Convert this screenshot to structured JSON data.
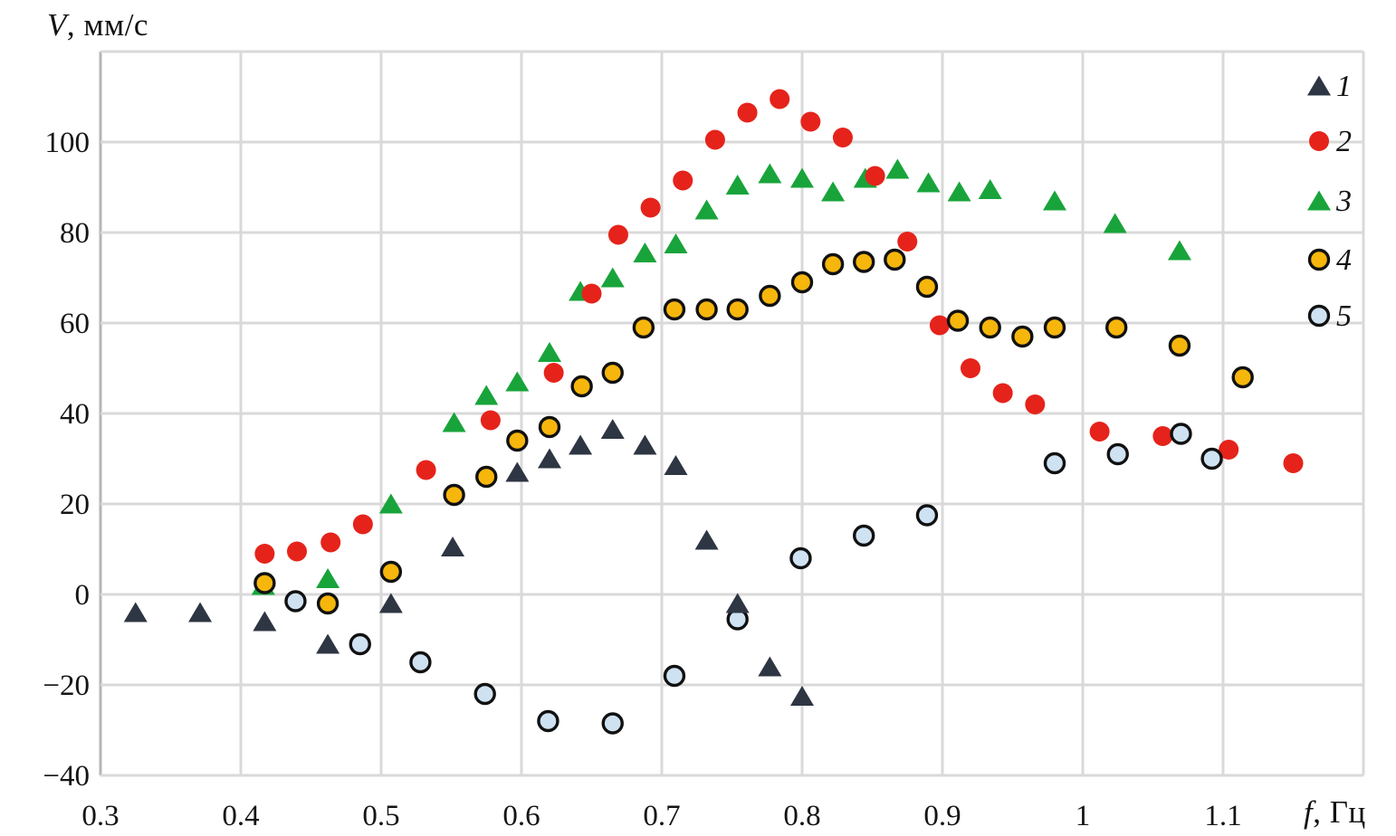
{
  "page": {
    "background": "#ffffff"
  },
  "y_axis": {
    "title_var": "V",
    "title_rest": ", мм/с",
    "tick_labels": [
      {
        "text": "100",
        "value": 100
      },
      {
        "text": "80",
        "value": 80
      },
      {
        "text": "60",
        "value": 60
      },
      {
        "text": "40",
        "value": 40
      },
      {
        "text": "20",
        "value": 20
      },
      {
        "text": "0",
        "value": 0
      },
      {
        "text": "−20",
        "value": -20
      },
      {
        "text": "−40",
        "value": -40
      }
    ],
    "grid_values": [
      -40,
      -20,
      0,
      20,
      40,
      60,
      80,
      100,
      120
    ]
  },
  "x_axis": {
    "title_var": "f",
    "title_rest": ", Гц",
    "tick_labels": [
      {
        "text": "0.3",
        "value": 0.3
      },
      {
        "text": "0.4",
        "value": 0.4
      },
      {
        "text": "0.5",
        "value": 0.5
      },
      {
        "text": "0.6",
        "value": 0.6
      },
      {
        "text": "0.7",
        "value": 0.7
      },
      {
        "text": "0.8",
        "value": 0.8
      },
      {
        "text": "0.9",
        "value": 0.9
      },
      {
        "text": "1",
        "value": 1.0
      },
      {
        "text": "1.1",
        "value": 1.1
      }
    ],
    "grid_values": [
      0.3,
      0.4,
      0.5,
      0.6,
      0.7,
      0.8,
      0.9,
      1.0,
      1.1,
      1.2
    ]
  },
  "legend": {
    "entries": [
      {
        "label": "1",
        "series_id": 1
      },
      {
        "label": "2",
        "series_id": 2
      },
      {
        "label": "3",
        "series_id": 3
      },
      {
        "label": "4",
        "series_id": 4
      },
      {
        "label": "5",
        "series_id": 5
      }
    ]
  },
  "colors": {
    "grid": "#d9d9d9",
    "axis_border": "#b5b5b5",
    "text": "#141414",
    "series1": "#2e3543",
    "series2": "#e5231b",
    "series3": "#18a43b",
    "series4": "#f6b60b",
    "series5": "#cfe2f2",
    "marker_outline": "#111111"
  },
  "chart_data": {
    "type": "scatter",
    "title": "",
    "xlabel": "f, Гц",
    "ylabel": "V, мм/с",
    "xlim": [
      0.3,
      1.2
    ],
    "ylim": [
      -40,
      120
    ],
    "grid": true,
    "legend_position": "top-right-inside",
    "draw_order": [
      3,
      2,
      4,
      5,
      1
    ],
    "series": [
      {
        "id": 1,
        "name": "1",
        "marker": "triangle",
        "fill": "#2e3543",
        "stroke": "none",
        "points": [
          [
            0.325,
            -4
          ],
          [
            0.371,
            -4
          ],
          [
            0.417,
            -6
          ],
          [
            0.462,
            -11
          ],
          [
            0.507,
            -2
          ],
          [
            0.551,
            10.5
          ],
          [
            0.597,
            27
          ],
          [
            0.62,
            30
          ],
          [
            0.642,
            33
          ],
          [
            0.665,
            36.5
          ],
          [
            0.688,
            33
          ],
          [
            0.71,
            28.5
          ],
          [
            0.732,
            12
          ],
          [
            0.754,
            -2
          ],
          [
            0.777,
            -16
          ],
          [
            0.8,
            -22.5
          ]
        ]
      },
      {
        "id": 2,
        "name": "2",
        "marker": "circle",
        "fill": "#e5231b",
        "stroke": "none",
        "points": [
          [
            0.417,
            9
          ],
          [
            0.44,
            9.5
          ],
          [
            0.464,
            11.5
          ],
          [
            0.487,
            15.5
          ],
          [
            0.532,
            27.5
          ],
          [
            0.578,
            38.5
          ],
          [
            0.623,
            49
          ],
          [
            0.65,
            66.5
          ],
          [
            0.669,
            79.5
          ],
          [
            0.692,
            85.5
          ],
          [
            0.715,
            91.5
          ],
          [
            0.738,
            100.5
          ],
          [
            0.761,
            106.5
          ],
          [
            0.784,
            109.5
          ],
          [
            0.806,
            104.5
          ],
          [
            0.829,
            101
          ],
          [
            0.852,
            92.5
          ],
          [
            0.875,
            78
          ],
          [
            0.898,
            59.5
          ],
          [
            0.92,
            50
          ],
          [
            0.943,
            44.5
          ],
          [
            0.966,
            42
          ],
          [
            1.012,
            36
          ],
          [
            1.057,
            35
          ],
          [
            1.104,
            32
          ],
          [
            1.15,
            29
          ]
        ]
      },
      {
        "id": 3,
        "name": "3",
        "marker": "triangle",
        "fill": "#18a43b",
        "stroke": "none",
        "points": [
          [
            0.416,
            2
          ],
          [
            0.462,
            3.5
          ],
          [
            0.507,
            20
          ],
          [
            0.552,
            38
          ],
          [
            0.575,
            44
          ],
          [
            0.597,
            47
          ],
          [
            0.62,
            53.5
          ],
          [
            0.642,
            67
          ],
          [
            0.665,
            70
          ],
          [
            0.688,
            75.5
          ],
          [
            0.71,
            77.5
          ],
          [
            0.732,
            85
          ],
          [
            0.754,
            90.5
          ],
          [
            0.777,
            93
          ],
          [
            0.8,
            92
          ],
          [
            0.822,
            89
          ],
          [
            0.845,
            92
          ],
          [
            0.868,
            94
          ],
          [
            0.89,
            91
          ],
          [
            0.912,
            89
          ],
          [
            0.934,
            89.5
          ],
          [
            0.98,
            87
          ],
          [
            1.023,
            82
          ],
          [
            1.069,
            76
          ]
        ]
      },
      {
        "id": 4,
        "name": "4",
        "marker": "circle-outlined",
        "fill": "#f6b60b",
        "stroke": "#111111",
        "points": [
          [
            0.417,
            2.5
          ],
          [
            0.462,
            -2
          ],
          [
            0.507,
            5
          ],
          [
            0.552,
            22
          ],
          [
            0.575,
            26
          ],
          [
            0.597,
            34
          ],
          [
            0.62,
            37
          ],
          [
            0.643,
            46
          ],
          [
            0.665,
            49
          ],
          [
            0.687,
            59
          ],
          [
            0.709,
            63
          ],
          [
            0.732,
            63
          ],
          [
            0.754,
            63
          ],
          [
            0.777,
            66
          ],
          [
            0.8,
            69
          ],
          [
            0.822,
            73
          ],
          [
            0.844,
            73.5
          ],
          [
            0.866,
            74
          ],
          [
            0.889,
            68
          ],
          [
            0.911,
            60.5
          ],
          [
            0.934,
            59
          ],
          [
            0.957,
            57
          ],
          [
            0.98,
            59
          ],
          [
            1.024,
            59
          ],
          [
            1.069,
            55
          ],
          [
            1.114,
            48
          ]
        ]
      },
      {
        "id": 5,
        "name": "5",
        "marker": "circle-outlined",
        "fill": "#cfe2f2",
        "stroke": "#111111",
        "points": [
          [
            0.439,
            -1.5
          ],
          [
            0.485,
            -11
          ],
          [
            0.528,
            -15
          ],
          [
            0.574,
            -22
          ],
          [
            0.619,
            -28
          ],
          [
            0.665,
            -28.5
          ],
          [
            0.709,
            -18
          ],
          [
            0.754,
            -5.5
          ],
          [
            0.799,
            8
          ],
          [
            0.844,
            13
          ],
          [
            0.889,
            17.5
          ],
          [
            0.98,
            29
          ],
          [
            1.025,
            31
          ],
          [
            1.07,
            35.5
          ],
          [
            1.092,
            30
          ]
        ]
      }
    ]
  }
}
